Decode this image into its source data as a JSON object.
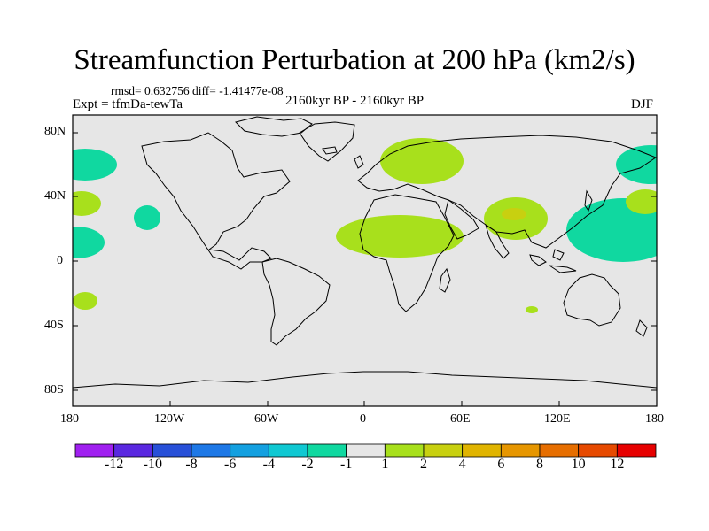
{
  "title": "Streamfunction Perturbation at 200 hPa (km2/s)",
  "stats": "rmsd= 0.632756 diff= -1.41477e-08",
  "experiment": "Expt = tfmDa-tewTa",
  "period": "2160kyr BP - 2160kyr BP",
  "season": "DJF",
  "lat_ticks": [
    "80N",
    "40N",
    "0",
    "40S",
    "80S"
  ],
  "lon_ticks": [
    "180",
    "120W",
    "60W",
    "0",
    "60E",
    "120E",
    "180"
  ],
  "colorbar": {
    "labels": [
      "-12",
      "-10",
      "-8",
      "-6",
      "-4",
      "-2",
      "-1",
      "1",
      "2",
      "4",
      "6",
      "8",
      "10",
      "12"
    ],
    "colors": [
      "#a020f0",
      "#5a28e0",
      "#2850d8",
      "#1e78e6",
      "#14a0e0",
      "#10c8d2",
      "#10d8a0",
      "#e6e6e6",
      "#a8e01c",
      "#c8d010",
      "#e0b400",
      "#e69600",
      "#e66e00",
      "#e64a00",
      "#e60000"
    ]
  },
  "map_background": "#e6e6e6",
  "anomalies": [
    {
      "region": "north-pacific-west",
      "color": "#10d8a0",
      "lon": -172,
      "lat": 64
    },
    {
      "region": "north-pacific-east",
      "color": "#10d8a0",
      "lon": 172,
      "lat": 60
    },
    {
      "region": "central-pacific-north",
      "color": "#10d8a0",
      "lon": -135,
      "lat": 24
    },
    {
      "region": "pacific-dateline-north",
      "color": "#10d8a0",
      "lon": -176,
      "lat": 10
    },
    {
      "region": "west-pacific",
      "color": "#10d8a0",
      "lon": 152,
      "lat": 18
    },
    {
      "region": "subtropical-north-pacific-west",
      "color": "#a8e01c",
      "lon": -178,
      "lat": 36
    },
    {
      "region": "subtropical-north-pacific-east",
      "color": "#a8e01c",
      "lon": 177,
      "lat": 36
    },
    {
      "region": "scandinavia",
      "color": "#a8e01c",
      "lon": 32,
      "lat": 62
    },
    {
      "region": "north-africa",
      "color": "#a8e01c",
      "lon": 30,
      "lat": 17
    },
    {
      "region": "south-asia",
      "color": "#a8e01c",
      "lon": 93,
      "lat": 28
    },
    {
      "region": "south-asia-core",
      "color": "#c8d010",
      "lon": 95,
      "lat": 28
    },
    {
      "region": "south-pacific",
      "color": "#a8e01c",
      "lon": -172,
      "lat": -24
    },
    {
      "region": "northern-australia",
      "color": "#a8e01c",
      "lon": 108,
      "lat": -28
    }
  ]
}
